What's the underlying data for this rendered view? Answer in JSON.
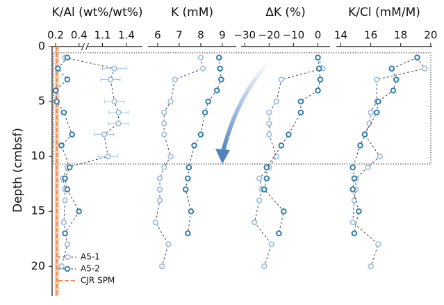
{
  "chart_data": [
    {
      "type": "line",
      "xlabel": "K/Al (wt%/wt%)",
      "xlim": [
        0.17,
        1.6
      ],
      "xbreak": [
        0.44,
        0.9
      ],
      "xticks": [
        0.2,
        0.4,
        1.1,
        1.4
      ],
      "ylabel": "Depth (cmbsf)",
      "ylim": [
        0,
        22.7
      ],
      "yticks": [
        0,
        5,
        10,
        15,
        20
      ],
      "legend": "lower left",
      "reference": {
        "name": "CJR SPM",
        "value": 0.21,
        "color": "#f08a4b"
      },
      "series": [
        {
          "name": "A5-1",
          "color": "#a9c4e0",
          "depths": [
            1,
            2,
            3,
            5,
            6,
            7,
            8,
            10,
            11,
            12,
            13,
            14,
            16,
            18,
            20
          ],
          "values": [
            0.28,
            1.25,
            1.2,
            1.25,
            1.3,
            1.3,
            1.12,
            1.17,
            0.3,
            0.26,
            0.28,
            0.28,
            0.27,
            0.3,
            0.25
          ],
          "errors": [
            null,
            0.15,
            0.12,
            0.12,
            0.12,
            0.12,
            0.12,
            0.12,
            null,
            null,
            null,
            null,
            null,
            null,
            null
          ]
        },
        {
          "name": "A5-2",
          "color": "#2e7fb0",
          "depths": [
            1,
            2,
            3,
            4,
            5,
            6,
            8,
            9,
            11,
            12,
            13,
            15,
            17
          ],
          "values": [
            0.3,
            0.22,
            0.3,
            0.2,
            0.21,
            0.27,
            0.34,
            0.25,
            0.32,
            0.28,
            0.3,
            0.4,
            0.28
          ]
        }
      ]
    },
    {
      "type": "line",
      "xlabel": "K (mM)",
      "xlim": [
        5.55,
        9.65
      ],
      "xticks": [
        6,
        7,
        8,
        9
      ],
      "series": [
        {
          "name": "A5-1",
          "color": "#a9c4e0",
          "depths": [
            1,
            2,
            3,
            5,
            6,
            7,
            8,
            10,
            11,
            12,
            13,
            14,
            16,
            18,
            20
          ],
          "values": [
            8.0,
            8.1,
            6.8,
            6.6,
            6.3,
            6.3,
            6.3,
            6.6,
            6.3,
            6.1,
            6.1,
            6.1,
            5.9,
            6.5,
            6.2
          ]
        },
        {
          "name": "A5-2",
          "color": "#2e7fb0",
          "depths": [
            1,
            2,
            3,
            4,
            5,
            6,
            8,
            9,
            11,
            12,
            13,
            15,
            17
          ],
          "values": [
            8.85,
            8.9,
            8.95,
            8.75,
            8.35,
            8.2,
            8.0,
            7.7,
            7.45,
            7.4,
            7.3,
            7.55,
            7.4
          ]
        }
      ]
    },
    {
      "type": "line",
      "xlabel": "ΔK (%)",
      "xlim": [
        -31.5,
        5
      ],
      "xticks": [
        {
          "value": -30,
          "label": "−30"
        },
        {
          "value": -20,
          "label": "−20"
        },
        {
          "value": -10,
          "label": "−10"
        },
        0
      ],
      "series": [
        {
          "name": "A5-1",
          "color": "#a9c4e0",
          "depths": [
            1,
            2,
            3,
            5,
            6,
            7,
            8,
            10,
            11,
            12,
            13,
            14,
            16,
            18,
            20
          ],
          "values": [
            0,
            2,
            -15,
            -17,
            -20,
            -20,
            -20,
            -17,
            -20,
            -24,
            -23,
            -24,
            -26,
            -19,
            -22
          ]
        },
        {
          "name": "A5-2",
          "color": "#2e7fb0",
          "depths": [
            1,
            2,
            3,
            4,
            5,
            6,
            8,
            9,
            11,
            12,
            13,
            15,
            17
          ],
          "values": [
            0,
            0.5,
            1,
            0,
            -7,
            -7,
            -12,
            -15,
            -21,
            -21,
            -22,
            -14,
            -16
          ]
        }
      ]
    },
    {
      "type": "line",
      "xlabel": "K/Cl (mM/M)",
      "xlim": [
        13.7,
        20.1
      ],
      "xticks": [
        14,
        16,
        18,
        20
      ],
      "series": [
        {
          "name": "A5-1",
          "color": "#a9c4e0",
          "depths": [
            1,
            2,
            3,
            5,
            6,
            7,
            8,
            10,
            11,
            12,
            13,
            14,
            16,
            18,
            20
          ],
          "values": [
            19.1,
            19.6,
            16.4,
            16.4,
            16.0,
            15.9,
            15.6,
            16.6,
            15.8,
            15.0,
            15.0,
            14.9,
            14.8,
            16.5,
            16.0
          ]
        },
        {
          "name": "A5-2",
          "color": "#2e7fb0",
          "depths": [
            1,
            2,
            3,
            4,
            5,
            6,
            8,
            9,
            11,
            12,
            13,
            15,
            17
          ],
          "values": [
            19.1,
            17.4,
            17.7,
            17.5,
            16.5,
            16.4,
            15.6,
            15.3,
            14.8,
            14.9,
            14.8,
            15.2,
            14.9
          ]
        }
      ]
    }
  ]
}
